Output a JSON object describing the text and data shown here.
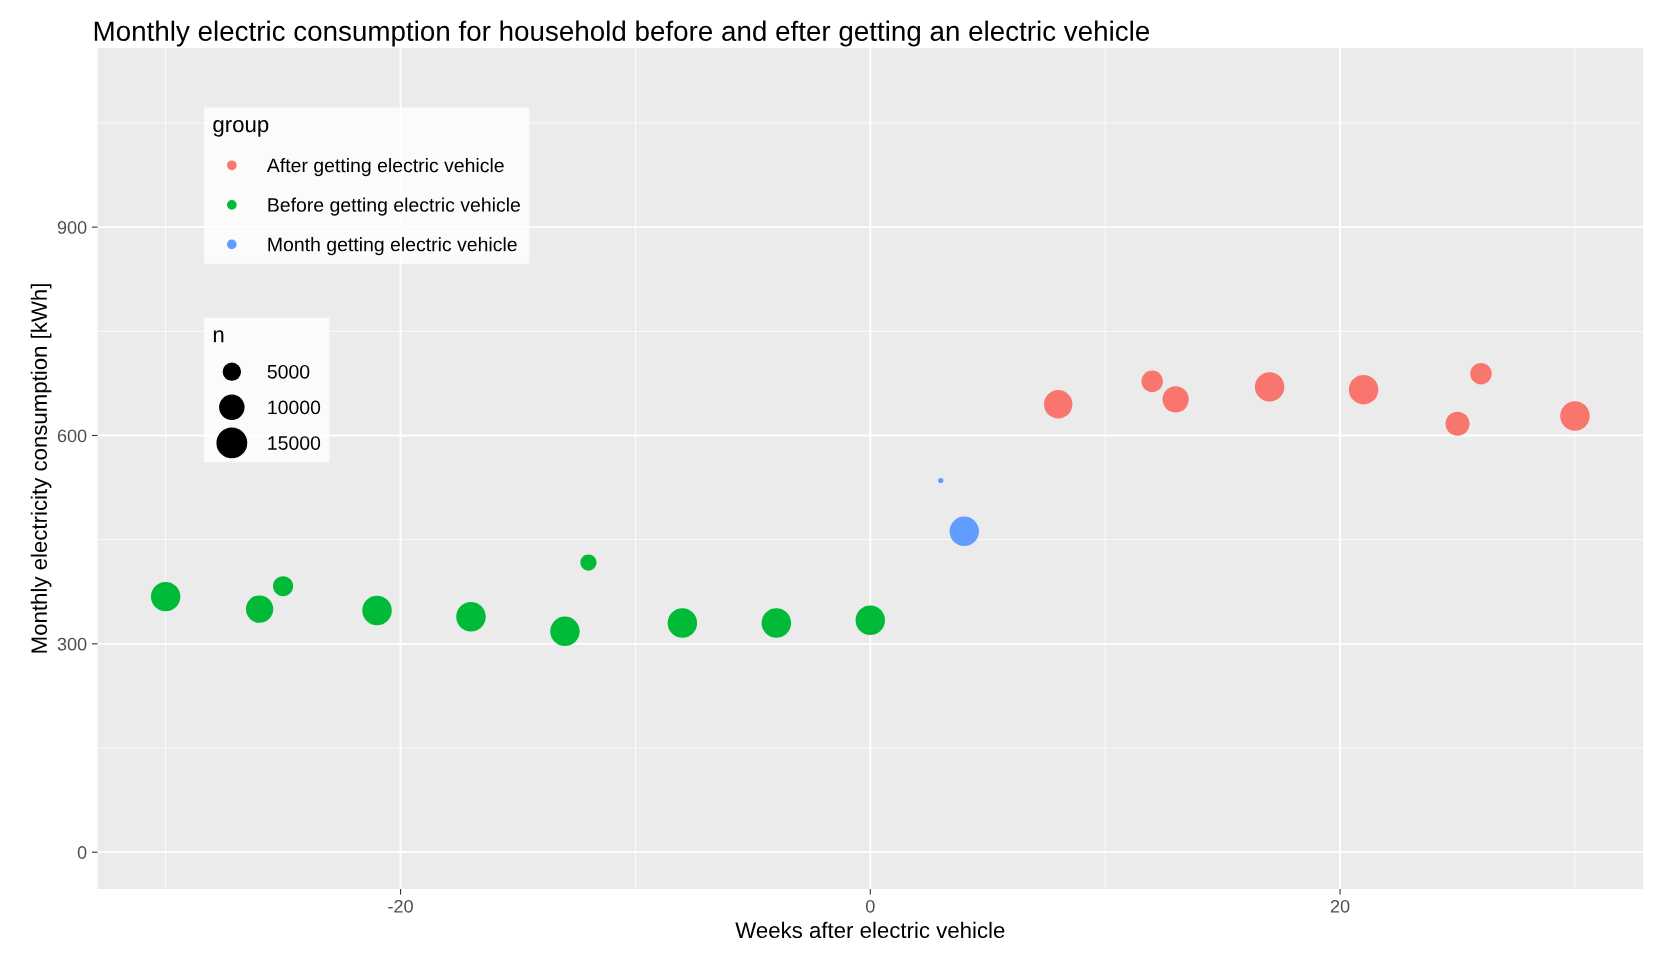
{
  "chart_data": {
    "type": "bubble",
    "title": "Monthly electric consumption for household before and efter getting an electric vehicle",
    "xlabel": "Weeks after electric vehicle",
    "ylabel": "Monthly electricity consumption [kWh]",
    "legend_title": "group",
    "legend": "top left",
    "grid": true,
    "annotations": [
      "n"
    ],
    "xlim": [
      -32.9,
      32.9
    ],
    "xticks": [
      -20,
      0,
      20
    ],
    "ylim": [
      -53,
      1158
    ],
    "yticks": [
      0,
      300,
      600,
      900
    ],
    "size_legend": [
      5000,
      10000,
      15000
    ],
    "series": [
      {
        "name": "After getting electric vehicle",
        "color": "#f8766d",
        "x": [
          8,
          12,
          13,
          17,
          21,
          25,
          26,
          30
        ],
        "values": [
          645,
          678,
          652,
          670,
          666,
          617,
          689,
          628
        ],
        "sizes": [
          14000,
          8000,
          12000,
          15000,
          15000,
          10000,
          8000,
          15000
        ]
      },
      {
        "name": "Before getting electric vehicle",
        "color": "#00ba38",
        "x": [
          -30,
          -26,
          -25,
          -21,
          -17,
          -13,
          -12,
          -8,
          -4,
          0
        ],
        "values": [
          368,
          350,
          383,
          348,
          339,
          318,
          417,
          330,
          330,
          334
        ],
        "sizes": [
          15000,
          13000,
          7000,
          15000,
          15000,
          15000,
          4500,
          15000,
          15000,
          15000
        ]
      },
      {
        "name": "Month getting electric vehicle",
        "color": "#619cff",
        "x": [
          3,
          4
        ],
        "values": [
          535,
          462
        ],
        "sizes": [
          500,
          15000
        ]
      }
    ]
  }
}
